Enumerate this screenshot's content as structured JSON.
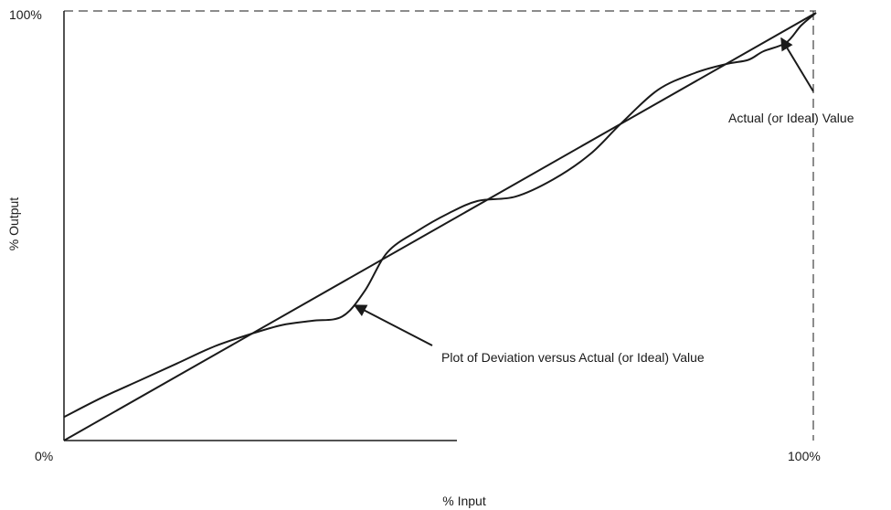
{
  "chart_data": {
    "type": "line",
    "title": "",
    "xlabel": "% Input",
    "ylabel": "% Output",
    "xlim": [
      0,
      100
    ],
    "ylim": [
      0,
      100
    ],
    "x_tick_labels": [
      "0%",
      "100%"
    ],
    "y_tick_labels": [
      "100%"
    ],
    "grid": false,
    "series": [
      {
        "key": "ideal",
        "x": [
          0,
          100
        ],
        "y": [
          0,
          100
        ]
      },
      {
        "key": "deviation",
        "x": [
          0,
          5,
          10,
          15,
          20,
          25,
          29,
          33,
          37,
          40,
          43,
          47,
          51,
          55,
          60,
          65,
          70,
          74,
          79,
          84,
          88,
          91,
          93,
          96,
          98,
          100
        ],
        "y": [
          5.5,
          10,
          14,
          18,
          22,
          25,
          27,
          28,
          29,
          35,
          44,
          49,
          53,
          56,
          57,
          61,
          67,
          74,
          82,
          86,
          88,
          89,
          91,
          93,
          97,
          100
        ]
      }
    ],
    "annotations": [
      {
        "key": "ideal-callout",
        "text": "Actual (or Ideal) Value"
      },
      {
        "key": "deviation-callout",
        "text": "Plot of Deviation versus Actual (or Ideal) Value"
      }
    ]
  }
}
